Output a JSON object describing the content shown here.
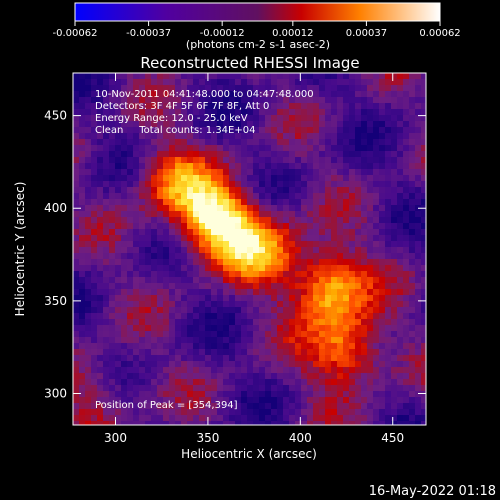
{
  "chart_data": {
    "type": "heatmap",
    "title": "Reconstructed RHESSI Image",
    "xlabel": "Heliocentric X (arcsec)",
    "ylabel": "Heliocentric Y (arcsec)",
    "xlim": [
      277,
      468
    ],
    "ylim": [
      283,
      473
    ],
    "x_ticks": [
      300,
      350,
      400,
      450
    ],
    "y_ticks": [
      300,
      350,
      400,
      450
    ],
    "colorbar": {
      "ticks": [
        -0.00062,
        -0.00037,
        -0.00012,
        0.00012,
        0.00037,
        0.00062
      ],
      "tick_labels": [
        "-0.00062",
        "-0.00037",
        "-0.00012",
        "0.00012",
        "0.00037",
        "0.00062"
      ],
      "units_label": "(photons cm-2 s-1 asec-2)",
      "range": [
        -0.00062,
        0.00062
      ]
    },
    "annotations": [
      "10-Nov-2011 04:41:48.000 to 04:47:48.000",
      "Detectors: 3F 4F 5F 6F 7F 8F, Att 0",
      "Energy Range: 12.0 - 25.0 keV",
      "Clean     Total counts: 1.34E+04"
    ],
    "peak_label": "Position of Peak = [354,394]",
    "peak": [
      354,
      394
    ],
    "sources": [
      {
        "x": 354,
        "y": 394,
        "value": 0.00062
      },
      {
        "x": 415,
        "y": 358,
        "value": 0.00052
      },
      {
        "x": 425,
        "y": 323,
        "value": 0.00045
      },
      {
        "x": 380,
        "y": 378,
        "value": 0.0004
      },
      {
        "x": 330,
        "y": 415,
        "value": 0.00032
      },
      {
        "x": 290,
        "y": 300,
        "value": 0.0002
      }
    ],
    "grid": false
  },
  "footer_date": "16-May-2022 01:18"
}
